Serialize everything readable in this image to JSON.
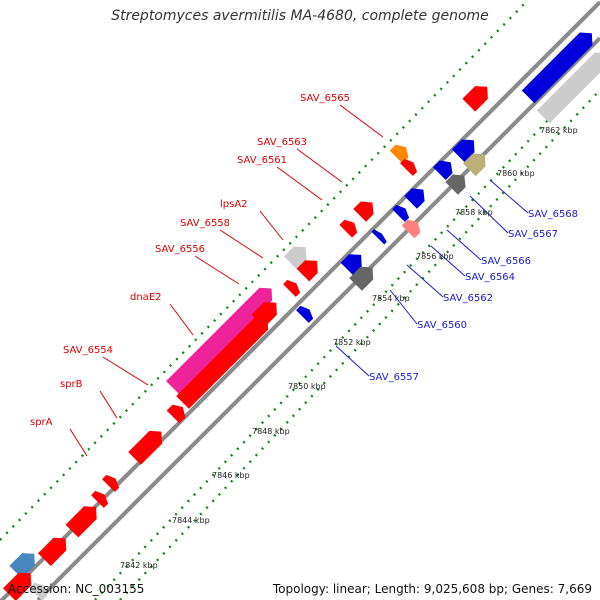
{
  "title": "Streptomyces avermitilis MA-4680, complete genome",
  "footer": {
    "accession": "Accession: NC_003155",
    "summary": "Topology: linear; Length: 9,025,608 bp; Genes: 7,669"
  },
  "colors": {
    "label_red": "#dd0000",
    "label_blue": "#1a1acc",
    "backbone": "#888888",
    "dots": "#118811"
  },
  "scale_ticks": [
    "7842 kbp",
    "7844 kbp",
    "7846 kbp",
    "7848 kbp",
    "7850 kbp",
    "7852 kbp",
    "7854 kbp",
    "7856 kbp",
    "7858 kbp",
    "7860 kbp",
    "7862 kbp"
  ],
  "gene_labels_left": [
    "SAV_6565",
    "SAV_6563",
    "SAV_6561",
    "lpsA2",
    "SAV_6558",
    "SAV_6556",
    "dnaE2",
    "SAV_6554",
    "sprB",
    "sprA"
  ],
  "gene_labels_right": [
    "SAV_6568",
    "SAV_6567",
    "SAV_6566",
    "SAV_6564",
    "SAV_6562",
    "SAV_6560",
    "SAV_6557"
  ]
}
